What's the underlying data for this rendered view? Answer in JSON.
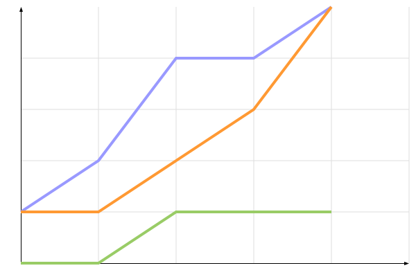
{
  "chart_data": {
    "type": "line",
    "title": "",
    "xlabel": "",
    "ylabel": "",
    "x": [
      0,
      1,
      2,
      3,
      4
    ],
    "xlim": [
      0,
      5
    ],
    "ylim": [
      0,
      5
    ],
    "grid": true,
    "legend": "none",
    "series": [
      {
        "values": [
          1,
          2,
          4,
          4,
          5
        ],
        "color": "#9999ff"
      },
      {
        "values": [
          1,
          1,
          2,
          3,
          5
        ],
        "color": "#ff9933"
      },
      {
        "values": [
          0,
          0,
          1,
          1,
          1
        ],
        "color": "#99cc66"
      }
    ]
  }
}
